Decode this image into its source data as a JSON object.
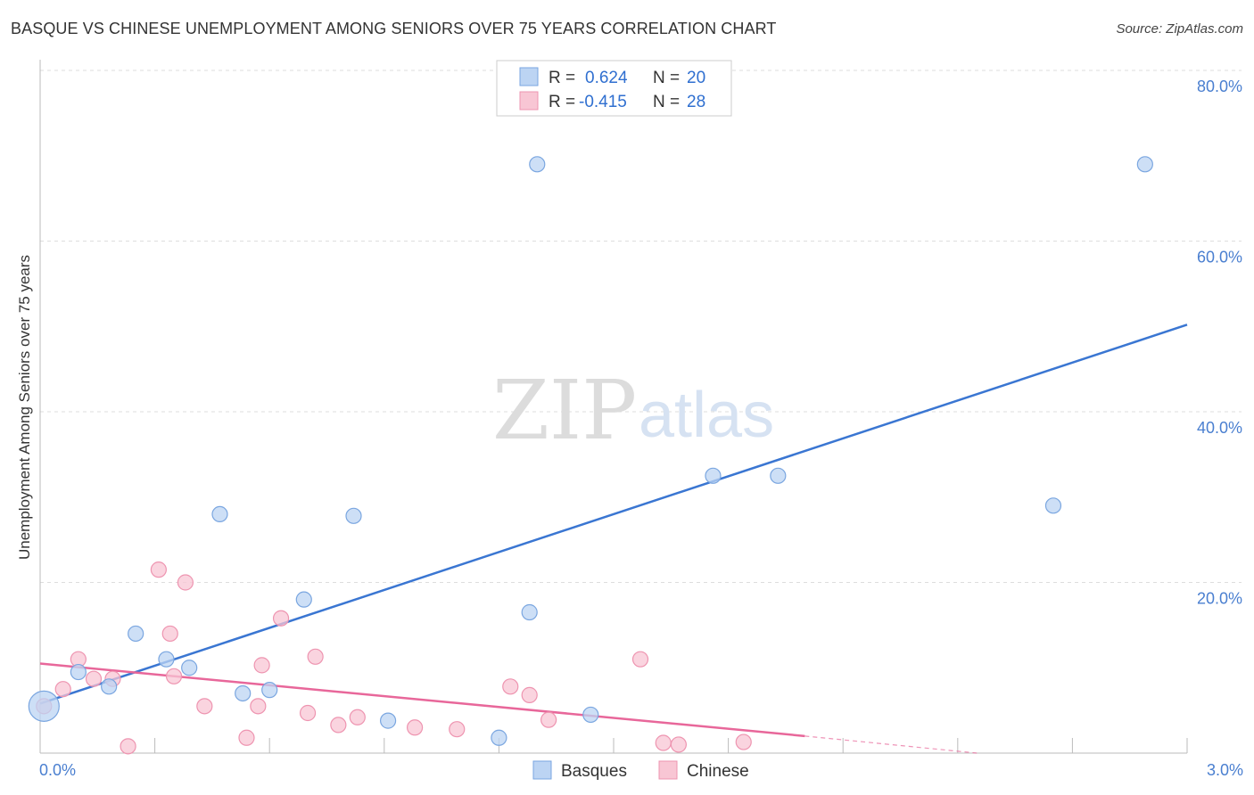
{
  "header": {
    "title": "BASQUE VS CHINESE UNEMPLOYMENT AMONG SENIORS OVER 75 YEARS CORRELATION CHART",
    "source": "Source: ZipAtlas.com"
  },
  "watermark": {
    "zip": "ZIP",
    "atlas": "atlas"
  },
  "legend": {
    "rows": [
      {
        "r_label": "R =",
        "r_value": "0.624",
        "n_label": "N =",
        "n_value": "20"
      },
      {
        "r_label": "R =",
        "r_value": "-0.415",
        "n_label": "N =",
        "n_value": "28"
      }
    ]
  },
  "colors": {
    "basques_fill": "#bcd4f3",
    "basques_stroke": "#7aa6e0",
    "basques_line": "#3a76d2",
    "chinese_fill": "#f8c6d4",
    "chinese_stroke": "#ee94b0",
    "chinese_line": "#e8679a",
    "grid": "#dddddd",
    "axis_text": "#4a7fd0"
  },
  "chart_data": {
    "type": "scatter",
    "title": "BASQUE VS CHINESE UNEMPLOYMENT AMONG SENIORS OVER 75 YEARS CORRELATION CHART",
    "xlabel": "",
    "ylabel": "Unemployment Among Seniors over 75 years",
    "xlim": [
      0,
      3.0
    ],
    "ylim": [
      0,
      80
    ],
    "x_tick_labels": [
      "0.0%",
      "3.0%"
    ],
    "y_ticks": [
      20,
      40,
      60,
      80
    ],
    "y_tick_labels": [
      "20.0%",
      "40.0%",
      "60.0%",
      "80.0%"
    ],
    "grid": true,
    "legend_position": "bottom-center",
    "series": [
      {
        "name": "Basques",
        "points": [
          {
            "x": 0.01,
            "y": 5.5,
            "big": true
          },
          {
            "x": 0.1,
            "y": 9.5
          },
          {
            "x": 0.18,
            "y": 7.8
          },
          {
            "x": 0.25,
            "y": 14.0
          },
          {
            "x": 0.33,
            "y": 11.0
          },
          {
            "x": 0.39,
            "y": 10.0
          },
          {
            "x": 0.47,
            "y": 28.0
          },
          {
            "x": 0.53,
            "y": 7.0
          },
          {
            "x": 0.6,
            "y": 7.4
          },
          {
            "x": 0.69,
            "y": 18.0
          },
          {
            "x": 0.82,
            "y": 27.8
          },
          {
            "x": 0.91,
            "y": 3.8
          },
          {
            "x": 1.2,
            "y": 1.8
          },
          {
            "x": 1.28,
            "y": 16.5
          },
          {
            "x": 1.3,
            "y": 69.0
          },
          {
            "x": 1.44,
            "y": 4.5
          },
          {
            "x": 1.76,
            "y": 32.5
          },
          {
            "x": 1.93,
            "y": 32.5
          },
          {
            "x": 2.65,
            "y": 29.0
          },
          {
            "x": 2.89,
            "y": 69.0
          }
        ],
        "trend": {
          "x": [
            0.0,
            3.0
          ],
          "y": [
            5.8,
            50.2
          ]
        }
      },
      {
        "name": "Chinese",
        "points": [
          {
            "x": 0.01,
            "y": 5.5
          },
          {
            "x": 0.06,
            "y": 7.5
          },
          {
            "x": 0.1,
            "y": 11.0
          },
          {
            "x": 0.14,
            "y": 8.7
          },
          {
            "x": 0.19,
            "y": 8.7
          },
          {
            "x": 0.23,
            "y": 0.8
          },
          {
            "x": 0.31,
            "y": 21.5
          },
          {
            "x": 0.34,
            "y": 14.0
          },
          {
            "x": 0.35,
            "y": 9.0
          },
          {
            "x": 0.38,
            "y": 20.0
          },
          {
            "x": 0.43,
            "y": 5.5
          },
          {
            "x": 0.54,
            "y": 1.8
          },
          {
            "x": 0.57,
            "y": 5.5
          },
          {
            "x": 0.58,
            "y": 10.3
          },
          {
            "x": 0.63,
            "y": 15.8
          },
          {
            "x": 0.7,
            "y": 4.7
          },
          {
            "x": 0.72,
            "y": 11.3
          },
          {
            "x": 0.78,
            "y": 3.3
          },
          {
            "x": 0.83,
            "y": 4.2
          },
          {
            "x": 0.98,
            "y": 3.0
          },
          {
            "x": 1.09,
            "y": 2.8
          },
          {
            "x": 1.23,
            "y": 7.8
          },
          {
            "x": 1.28,
            "y": 6.8
          },
          {
            "x": 1.33,
            "y": 3.9
          },
          {
            "x": 1.57,
            "y": 11.0
          },
          {
            "x": 1.63,
            "y": 1.2
          },
          {
            "x": 1.67,
            "y": 1.0
          },
          {
            "x": 1.84,
            "y": 1.3
          }
        ],
        "trend": {
          "x": [
            0.0,
            2.0
          ],
          "y": [
            10.5,
            2.0
          ],
          "dash_to": {
            "x": 2.45,
            "y": 0.0
          }
        }
      }
    ]
  }
}
